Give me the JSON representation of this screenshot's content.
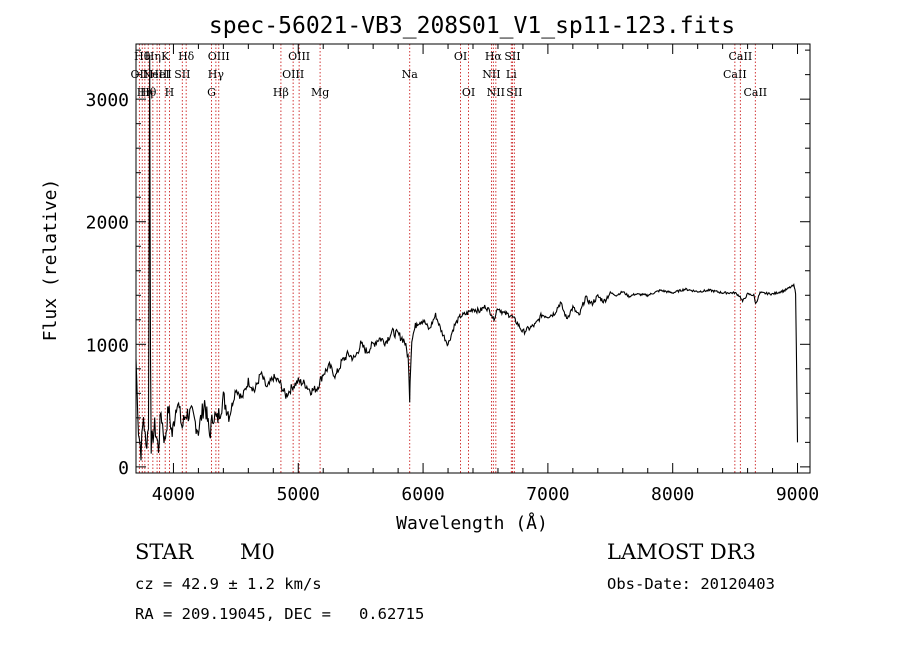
{
  "chart_data": {
    "type": "line",
    "title": "spec-56021-VB3_208S01_V1_sp11-123.fits",
    "xlabel": "Wavelength (Å)",
    "ylabel": "Flux (relative)",
    "xlim": [
      3700,
      9100
    ],
    "ylim": [
      -50,
      3450
    ],
    "xticks": [
      4000,
      5000,
      6000,
      7000,
      8000,
      9000
    ],
    "yticks": [
      0,
      1000,
      2000,
      3000
    ],
    "xtick_labels": [
      "4000",
      "5000",
      "6000",
      "7000",
      "8000",
      "9000"
    ],
    "ytick_labels": [
      "0",
      "1000",
      "2000",
      "3000"
    ],
    "series": [
      {
        "name": "spectrum",
        "x": [
          3700,
          3720,
          3740,
          3760,
          3780,
          3800,
          3810,
          3816,
          3822,
          3830,
          3850,
          3880,
          3900,
          3930,
          3960,
          3990,
          4030,
          4070,
          4100,
          4150,
          4200,
          4250,
          4290,
          4320,
          4350,
          4400,
          4450,
          4500,
          4550,
          4600,
          4650,
          4700,
          4750,
          4800,
          4850,
          4900,
          4950,
          5000,
          5050,
          5100,
          5150,
          5200,
          5250,
          5300,
          5350,
          5400,
          5450,
          5500,
          5550,
          5600,
          5650,
          5700,
          5750,
          5800,
          5850,
          5880,
          5893,
          5896,
          5910,
          5950,
          6000,
          6050,
          6100,
          6150,
          6200,
          6250,
          6300,
          6350,
          6400,
          6450,
          6500,
          6550,
          6563,
          6600,
          6650,
          6700,
          6750,
          6800,
          6850,
          6900,
          6950,
          7000,
          7050,
          7100,
          7150,
          7200,
          7250,
          7300,
          7350,
          7400,
          7450,
          7500,
          7550,
          7600,
          7650,
          7700,
          7800,
          7900,
          8000,
          8100,
          8200,
          8300,
          8400,
          8500,
          8540,
          8560,
          8600,
          8650,
          8665,
          8700,
          8800,
          8900,
          8950,
          8970,
          8985,
          9000
        ],
        "values": [
          880,
          300,
          120,
          420,
          150,
          350,
          3350,
          900,
          180,
          220,
          330,
          150,
          450,
          200,
          480,
          260,
          560,
          320,
          440,
          420,
          300,
          530,
          260,
          430,
          380,
          560,
          420,
          640,
          560,
          700,
          620,
          760,
          640,
          730,
          690,
          580,
          650,
          700,
          680,
          620,
          640,
          760,
          820,
          740,
          860,
          920,
          880,
          1000,
          940,
          1000,
          1050,
          1020,
          1100,
          1080,
          1030,
          900,
          560,
          720,
          1050,
          1180,
          1200,
          1120,
          1240,
          1100,
          1000,
          1150,
          1230,
          1250,
          1290,
          1270,
          1310,
          1250,
          1200,
          1300,
          1250,
          1240,
          1180,
          1100,
          1130,
          1160,
          1240,
          1230,
          1250,
          1340,
          1210,
          1300,
          1230,
          1380,
          1330,
          1390,
          1350,
          1420,
          1400,
          1430,
          1390,
          1410,
          1400,
          1440,
          1420,
          1450,
          1430,
          1440,
          1420,
          1420,
          1390,
          1350,
          1410,
          1400,
          1330,
          1420,
          1410,
          1440,
          1470,
          1480,
          1420,
          200
        ]
      }
    ],
    "line_markers": [
      {
        "x": 3727,
        "label": "OII",
        "row": 1
      },
      {
        "x": 3750,
        "label": "Hθ",
        "row": 0
      },
      {
        "x": 3771,
        "label": "Hη",
        "row": 2
      },
      {
        "x": 3798,
        "label": "Hθ",
        "row": 2
      },
      {
        "x": 3835,
        "label": "Hη",
        "row": 0
      },
      {
        "x": 3869,
        "label": "NeIII",
        "row": 1
      },
      {
        "x": 3889,
        "label": "HeI",
        "row": 1
      },
      {
        "x": 3934,
        "label": "K",
        "row": 0
      },
      {
        "x": 3968,
        "label": "H",
        "row": 2
      },
      {
        "x": 4071,
        "label": "SII",
        "row": 1
      },
      {
        "x": 4102,
        "label": "Hδ",
        "row": 0
      },
      {
        "x": 4305,
        "label": "G",
        "row": 2
      },
      {
        "x": 4340,
        "label": "Hγ",
        "row": 1
      },
      {
        "x": 4363,
        "label": "OIII",
        "row": 0
      },
      {
        "x": 4861,
        "label": "Hβ",
        "row": 2
      },
      {
        "x": 4959,
        "label": "OIII",
        "row": 1
      },
      {
        "x": 5007,
        "label": "OIII",
        "row": 0
      },
      {
        "x": 5175,
        "label": "Mg",
        "row": 2
      },
      {
        "x": 5893,
        "label": "Na",
        "row": 1
      },
      {
        "x": 6300,
        "label": "OI",
        "row": 0
      },
      {
        "x": 6364,
        "label": "OI",
        "row": 2
      },
      {
        "x": 6548,
        "label": "NII",
        "row": 1
      },
      {
        "x": 6563,
        "label": "Hα",
        "row": 0
      },
      {
        "x": 6583,
        "label": "NII",
        "row": 2
      },
      {
        "x": 6707,
        "label": "Li",
        "row": 1
      },
      {
        "x": 6716,
        "label": "SII",
        "row": 0
      },
      {
        "x": 6731,
        "label": "SII",
        "row": 2
      },
      {
        "x": 8498,
        "label": "CaII",
        "row": 1
      },
      {
        "x": 8542,
        "label": "CaII",
        "row": 0
      },
      {
        "x": 8662,
        "label": "CaII",
        "row": 2
      }
    ]
  },
  "info": {
    "class": "STAR",
    "subclass": "M0",
    "survey": "LAMOST DR3",
    "cz": "cz = 42.9 ± 1.2 km/s",
    "obs_date": "Obs-Date: 20120403",
    "radec": "RA = 209.19045, DEC =   0.62715"
  }
}
